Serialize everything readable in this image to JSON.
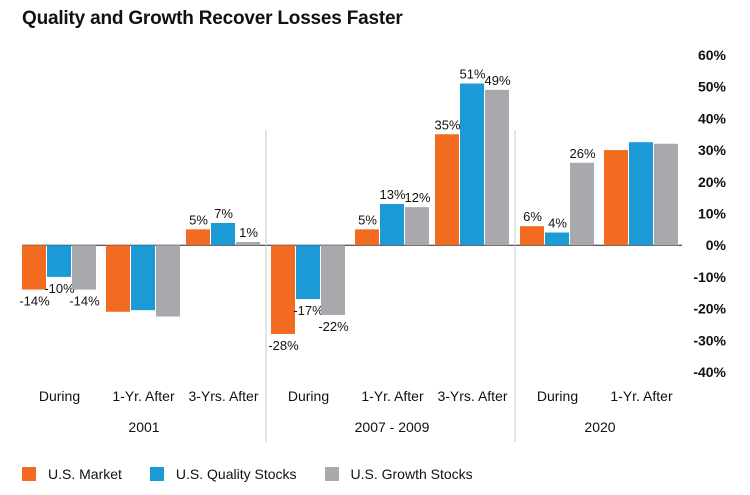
{
  "chart_data": {
    "type": "bar",
    "title": "Quality and Growth Recover Losses Faster",
    "y_ticks": [
      "60%",
      "50%",
      "40%",
      "30%",
      "20%",
      "10%",
      "0%",
      "-10%",
      "-20%",
      "-30%",
      "-40%"
    ],
    "ylim": [
      -40,
      60
    ],
    "grid": false,
    "legend_position": "bottom",
    "series": [
      {
        "name": "U.S. Market",
        "color": "#f26b21"
      },
      {
        "name": "U.S. Quality Stocks",
        "color": "#1b9ad6"
      },
      {
        "name": "U.S. Growth Stocks",
        "color": "#a7a9ac"
      }
    ],
    "periods": [
      {
        "label": "2001",
        "groups": [
          {
            "label": "During",
            "values": [
              -14,
              -10,
              -14
            ],
            "value_labels": [
              "-14%",
              "-10%",
              "-14%"
            ]
          },
          {
            "label": "1-Yr. After",
            "values": [
              -21,
              -20.5,
              -22.5
            ],
            "value_labels": [
              "",
              "",
              ""
            ]
          },
          {
            "label": "3-Yrs. After",
            "values": [
              5,
              7,
              1
            ],
            "value_labels": [
              "5%",
              "7%",
              "1%"
            ]
          }
        ]
      },
      {
        "label": "2007 - 2009",
        "groups": [
          {
            "label": "During",
            "values": [
              -28,
              -17,
              -22
            ],
            "value_labels": [
              "-28%",
              "-17%",
              "-22%"
            ]
          },
          {
            "label": "1-Yr. After",
            "values": [
              5,
              13,
              12
            ],
            "value_labels": [
              "5%",
              "13%",
              "12%"
            ]
          },
          {
            "label": "3-Yrs. After",
            "values": [
              35,
              51,
              49
            ],
            "value_labels": [
              "35%",
              "51%",
              "49%"
            ]
          }
        ]
      },
      {
        "label": "2020",
        "groups": [
          {
            "label": "During",
            "values": [
              6,
              4,
              26
            ],
            "value_labels": [
              "6%",
              "4%",
              "26%"
            ]
          },
          {
            "label": "1-Yr. After",
            "values": [
              30,
              32.5,
              32
            ],
            "value_labels": [
              "",
              "",
              ""
            ]
          }
        ]
      }
    ]
  }
}
